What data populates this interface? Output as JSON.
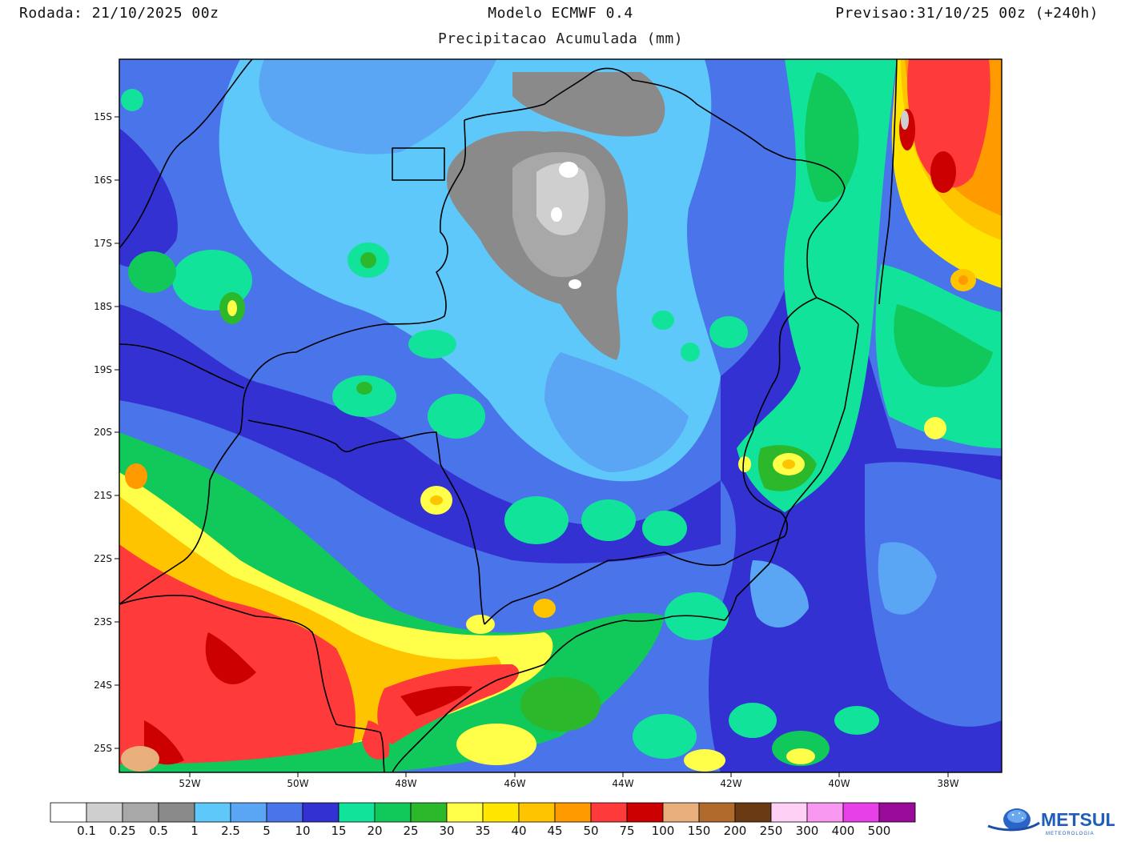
{
  "header": {
    "run": "Rodada: 21/10/2025 00z",
    "model": "Modelo ECMWF 0.4",
    "forecast": "Previsao:31/10/25 00z (+240h)",
    "subtitle": "Precipitacao Acumulada (mm)"
  },
  "axes": {
    "lat_labels": [
      "15S",
      "16S",
      "17S",
      "18S",
      "19S",
      "20S",
      "21S",
      "22S",
      "23S",
      "24S",
      "25S"
    ],
    "lon_labels": [
      "52W",
      "50W",
      "48W",
      "46W",
      "44W",
      "42W",
      "40W",
      "38W"
    ]
  },
  "colorbar": {
    "labels": [
      "0.1",
      "0.25",
      "0.5",
      "1",
      "2.5",
      "5",
      "10",
      "15",
      "20",
      "25",
      "30",
      "35",
      "40",
      "45",
      "50",
      "75",
      "100",
      "150",
      "200",
      "250",
      "300",
      "400",
      "500"
    ],
    "colors": [
      "#ffffff",
      "#cfcfcf",
      "#a8a8a8",
      "#8a8a8a",
      "#5ec8fa",
      "#5aa6f5",
      "#4a74ea",
      "#3331d2",
      "#12e39b",
      "#11c85a",
      "#2bb82b",
      "#ffff4a",
      "#ffe600",
      "#ffc400",
      "#ff9a00",
      "#ff3a3a",
      "#cc0000",
      "#e8ae7c",
      "#b06a2c",
      "#6a3a14",
      "#ffd0f6",
      "#f898f0",
      "#e840e8",
      "#9a0a9a"
    ]
  },
  "map": {
    "variable": "Precipitacao Acumulada (mm)",
    "colors": {
      "frame": "#000000",
      "border": "#000000"
    }
  },
  "logo": {
    "text": "METSUL",
    "subtext": "METEOROLOGIA"
  }
}
